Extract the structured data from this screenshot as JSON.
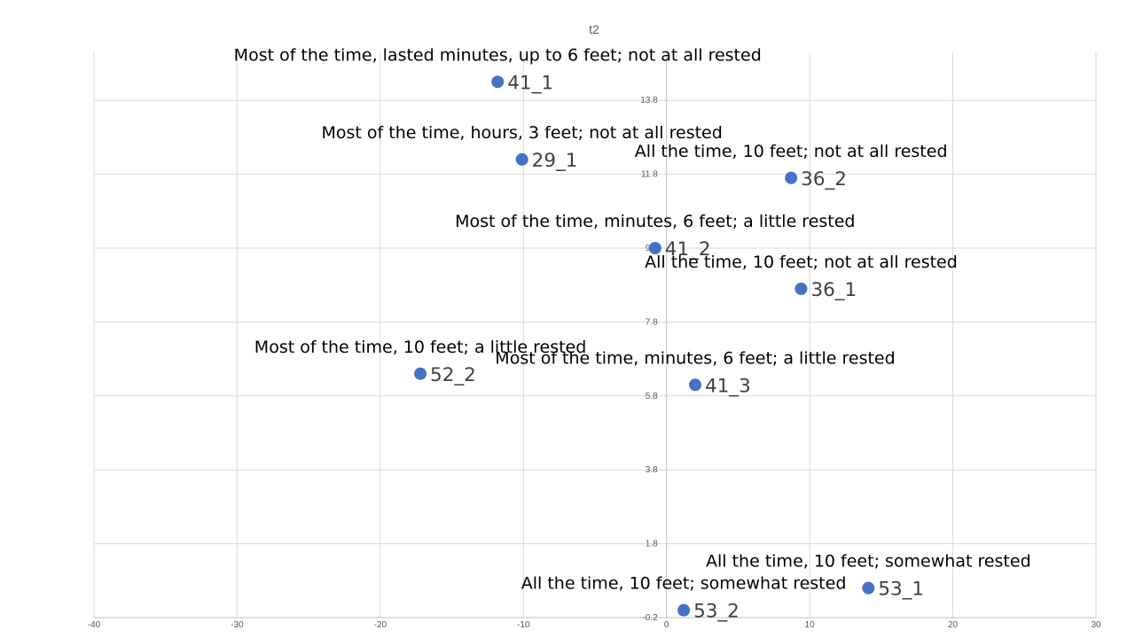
{
  "chart_data": {
    "type": "scatter",
    "title": "t2",
    "xlabel": "",
    "ylabel": "",
    "xlim": [
      -40,
      30
    ],
    "ylim": [
      -0.2,
      15.1
    ],
    "x_ticks": [
      -40,
      -30,
      -20,
      -10,
      0,
      10,
      20,
      30
    ],
    "x_tick_labels": [
      "-40",
      "-30",
      "-20",
      "-10",
      "0",
      "10",
      "20",
      "30"
    ],
    "y_ticks": [
      -0.2,
      1.8,
      3.8,
      5.8,
      7.8,
      9.8,
      11.8,
      13.8
    ],
    "y_tick_labels": [
      "-0.2",
      "1.8",
      "3.8",
      "5.8",
      "7.8",
      "9.8",
      "11.8",
      "13.8"
    ],
    "grid": true,
    "legend": "none",
    "marker_color": "#4472C4",
    "points": [
      {
        "label": "41_1",
        "x": -11.8,
        "y": 14.3,
        "annotation": "Most of the time, lasted minutes, up to 6 feet; not at all rested"
      },
      {
        "label": "29_1",
        "x": -10.1,
        "y": 12.2,
        "annotation": "Most of the time, hours, 3 feet; not at all  rested"
      },
      {
        "label": "36_2",
        "x": 8.7,
        "y": 11.7,
        "annotation": "All the time, 10 feet; not at all  rested"
      },
      {
        "label": "41_2",
        "x": -0.8,
        "y": 9.8,
        "annotation": "Most of the time, minutes, 6 feet; a little rested"
      },
      {
        "label": "36_1",
        "x": 9.4,
        "y": 8.7,
        "annotation": "All the time, 10 feet; not at all  rested"
      },
      {
        "label": "52_2",
        "x": -17.2,
        "y": 6.4,
        "annotation": "Most of the time, 10 feet; a little rested"
      },
      {
        "label": "41_3",
        "x": 2.0,
        "y": 6.1,
        "annotation": "Most of the time, minutes, 6 feet; a little rested"
      },
      {
        "label": "53_1",
        "x": 14.1,
        "y": 0.6,
        "annotation": "All the time, 10 feet; somewhat  rested"
      },
      {
        "label": "53_2",
        "x": 1.2,
        "y": 0.0,
        "annotation": "All the time, 10 feet; somewhat  rested"
      }
    ]
  }
}
